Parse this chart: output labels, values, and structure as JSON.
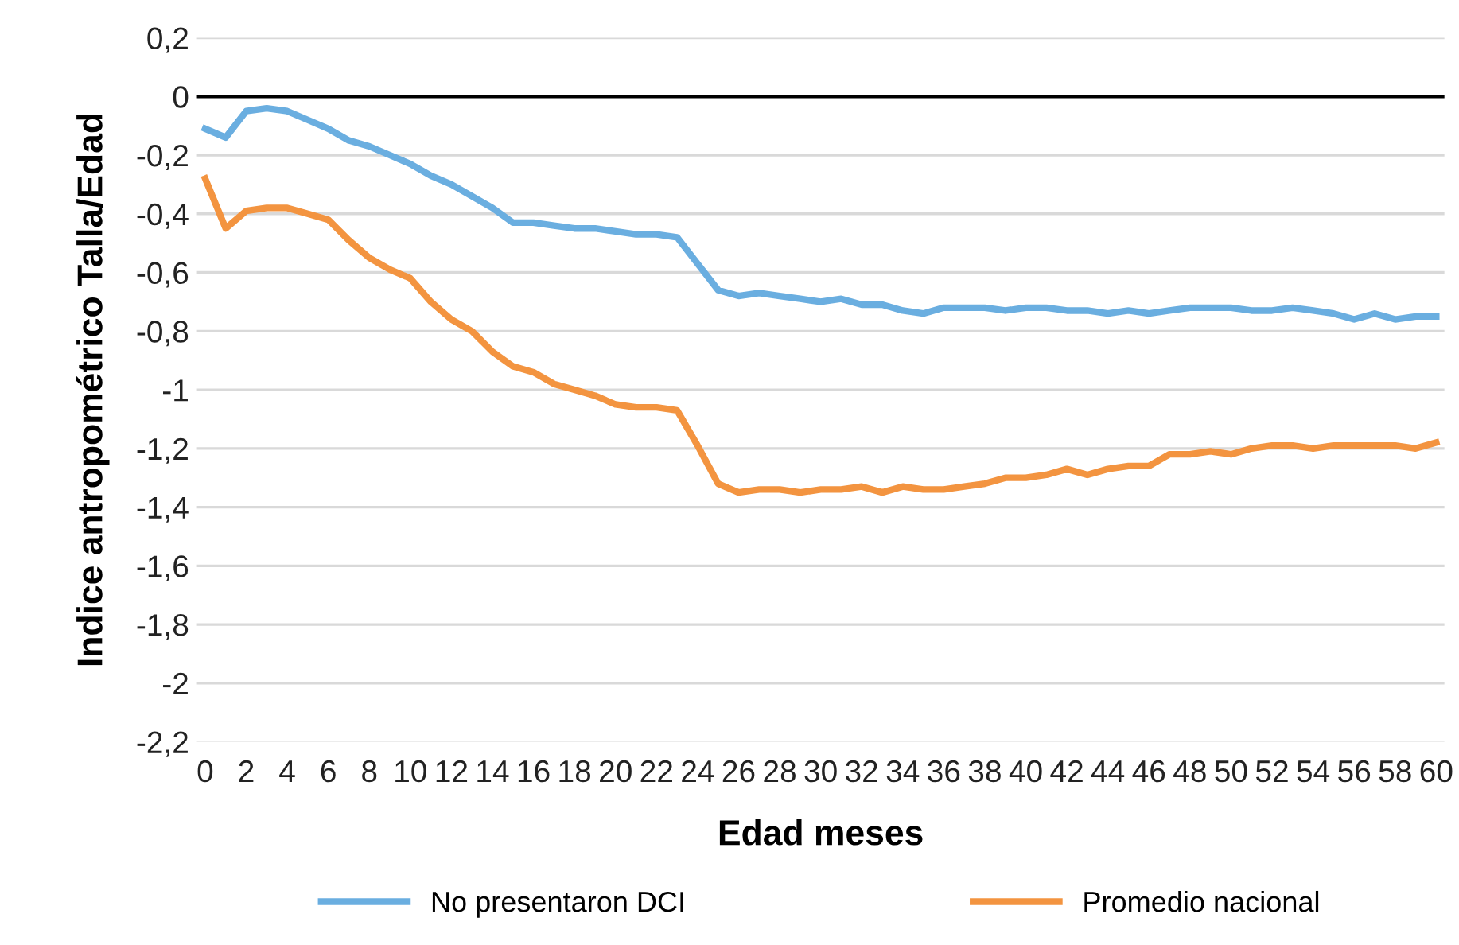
{
  "chart_data": {
    "type": "line",
    "xlabel": "Edad meses",
    "ylabel": "Indice antropométrico Talla/Edad",
    "x": [
      0,
      1,
      2,
      3,
      4,
      5,
      6,
      7,
      8,
      9,
      10,
      11,
      12,
      13,
      14,
      15,
      16,
      17,
      18,
      19,
      20,
      21,
      22,
      23,
      24,
      25,
      26,
      27,
      28,
      29,
      30,
      31,
      32,
      33,
      34,
      35,
      36,
      37,
      38,
      39,
      40,
      41,
      42,
      43,
      44,
      45,
      46,
      47,
      48,
      49,
      50,
      51,
      52,
      53,
      54,
      55,
      56,
      57,
      58,
      59,
      60
    ],
    "series": [
      {
        "name": "No presentaron DCI",
        "color": "#6aaee0",
        "values": [
          -0.11,
          -0.14,
          -0.05,
          -0.04,
          -0.05,
          -0.08,
          -0.11,
          -0.15,
          -0.17,
          -0.2,
          -0.23,
          -0.27,
          -0.3,
          -0.34,
          -0.38,
          -0.43,
          -0.43,
          -0.44,
          -0.45,
          -0.45,
          -0.46,
          -0.47,
          -0.47,
          -0.48,
          -0.57,
          -0.66,
          -0.68,
          -0.67,
          -0.68,
          -0.69,
          -0.7,
          -0.69,
          -0.71,
          -0.71,
          -0.73,
          -0.74,
          -0.72,
          -0.72,
          -0.72,
          -0.73,
          -0.72,
          -0.72,
          -0.73,
          -0.73,
          -0.74,
          -0.73,
          -0.74,
          -0.73,
          -0.72,
          -0.72,
          -0.72,
          -0.73,
          -0.73,
          -0.72,
          -0.73,
          -0.74,
          -0.76,
          -0.74,
          -0.76,
          -0.75,
          -0.75
        ]
      },
      {
        "name": "Promedio nacional",
        "color": "#f39440",
        "values": [
          -0.28,
          -0.45,
          -0.39,
          -0.38,
          -0.38,
          -0.4,
          -0.42,
          -0.49,
          -0.55,
          -0.59,
          -0.62,
          -0.7,
          -0.76,
          -0.8,
          -0.87,
          -0.92,
          -0.94,
          -0.98,
          -1.0,
          -1.02,
          -1.05,
          -1.06,
          -1.06,
          -1.07,
          -1.19,
          -1.32,
          -1.35,
          -1.34,
          -1.34,
          -1.35,
          -1.34,
          -1.34,
          -1.33,
          -1.35,
          -1.33,
          -1.34,
          -1.34,
          -1.33,
          -1.32,
          -1.3,
          -1.3,
          -1.29,
          -1.27,
          -1.29,
          -1.27,
          -1.26,
          -1.26,
          -1.22,
          -1.22,
          -1.21,
          -1.22,
          -1.2,
          -1.19,
          -1.19,
          -1.2,
          -1.19,
          -1.19,
          -1.19,
          -1.19,
          -1.2,
          -1.18
        ]
      }
    ],
    "xlim": [
      -0.4,
      60.4
    ],
    "xticks": [
      0,
      2,
      4,
      6,
      8,
      10,
      12,
      14,
      16,
      18,
      20,
      22,
      24,
      26,
      28,
      30,
      32,
      34,
      36,
      38,
      40,
      42,
      44,
      46,
      48,
      50,
      52,
      54,
      56,
      58,
      60
    ],
    "ylim": [
      -2.2,
      0.2
    ],
    "yticks": [
      {
        "value": 0.2,
        "label": "0,2"
      },
      0,
      {
        "value": -0.2,
        "label": "-0,2"
      },
      {
        "value": -0.4,
        "label": "-0,4"
      },
      {
        "value": -0.6,
        "label": "-0,6"
      },
      {
        "value": -0.8,
        "label": "-0,8"
      },
      {
        "value": -1,
        "label": "-1"
      },
      {
        "value": -1.2,
        "label": "-1,2"
      },
      {
        "value": -1.4,
        "label": "-1,4"
      },
      {
        "value": -1.6,
        "label": "-1,6"
      },
      {
        "value": -1.8,
        "label": "-1,8"
      },
      {
        "value": -2,
        "label": "-2"
      },
      {
        "value": -2.2,
        "label": "-2,2"
      }
    ],
    "ref_lines": [
      {
        "axis": "y",
        "value": 0,
        "color": "#000000"
      }
    ],
    "grid": "y",
    "legend": "bottom",
    "marker": "none",
    "line_style": "solid"
  }
}
